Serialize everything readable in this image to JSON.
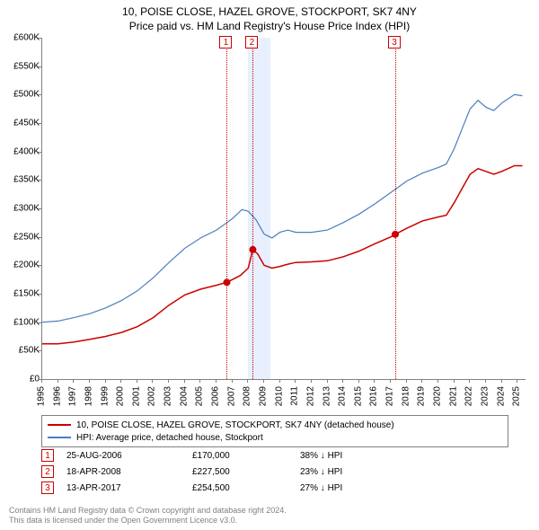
{
  "title_line1": "10, POISE CLOSE, HAZEL GROVE, STOCKPORT, SK7 4NY",
  "title_line2": "Price paid vs. HM Land Registry's House Price Index (HPI)",
  "chart": {
    "type": "line",
    "x_min": 1995,
    "x_max": 2025.5,
    "y_min": 0,
    "y_max": 600000,
    "ytick_step": 50000,
    "yticks": [
      "£0",
      "£50K",
      "£100K",
      "£150K",
      "£200K",
      "£250K",
      "£300K",
      "£350K",
      "£400K",
      "£450K",
      "£500K",
      "£550K",
      "£600K"
    ],
    "xticks": [
      1995,
      1996,
      1997,
      1998,
      1999,
      2000,
      2001,
      2002,
      2003,
      2004,
      2005,
      2006,
      2007,
      2008,
      2009,
      2010,
      2011,
      2012,
      2013,
      2014,
      2015,
      2016,
      2017,
      2018,
      2019,
      2020,
      2021,
      2022,
      2023,
      2024,
      2025
    ],
    "background_color": "#ffffff",
    "axis_color": "#808080",
    "recession_band": {
      "start": 2008.0,
      "end": 2009.4,
      "color": "#e8efff"
    },
    "series": {
      "property": {
        "color": "#cc0000",
        "width": 1.5,
        "points": [
          [
            1995,
            62000
          ],
          [
            1996,
            62000
          ],
          [
            1997,
            65000
          ],
          [
            1998,
            70000
          ],
          [
            1999,
            75000
          ],
          [
            2000,
            82000
          ],
          [
            2001,
            92000
          ],
          [
            2002,
            108000
          ],
          [
            2003,
            130000
          ],
          [
            2004,
            148000
          ],
          [
            2005,
            158000
          ],
          [
            2006,
            165000
          ],
          [
            2006.65,
            170000
          ],
          [
            2007,
            175000
          ],
          [
            2007.5,
            182000
          ],
          [
            2008,
            195000
          ],
          [
            2008.29,
            227500
          ],
          [
            2008.6,
            220000
          ],
          [
            2009,
            200000
          ],
          [
            2009.5,
            195000
          ],
          [
            2010,
            198000
          ],
          [
            2010.5,
            202000
          ],
          [
            2011,
            205000
          ],
          [
            2012,
            206000
          ],
          [
            2013,
            208000
          ],
          [
            2014,
            215000
          ],
          [
            2015,
            225000
          ],
          [
            2016,
            238000
          ],
          [
            2017,
            250000
          ],
          [
            2017.28,
            254500
          ],
          [
            2018,
            265000
          ],
          [
            2019,
            278000
          ],
          [
            2020,
            285000
          ],
          [
            2020.5,
            288000
          ],
          [
            2021,
            310000
          ],
          [
            2021.5,
            335000
          ],
          [
            2022,
            360000
          ],
          [
            2022.5,
            370000
          ],
          [
            2023,
            365000
          ],
          [
            2023.5,
            360000
          ],
          [
            2024,
            365000
          ],
          [
            2024.8,
            375000
          ],
          [
            2025.3,
            375000
          ]
        ]
      },
      "hpi": {
        "color": "#4a7ebb",
        "width": 1.2,
        "points": [
          [
            1995,
            100000
          ],
          [
            1996,
            102000
          ],
          [
            1997,
            108000
          ],
          [
            1998,
            115000
          ],
          [
            1999,
            125000
          ],
          [
            2000,
            138000
          ],
          [
            2001,
            155000
          ],
          [
            2002,
            178000
          ],
          [
            2003,
            205000
          ],
          [
            2004,
            230000
          ],
          [
            2005,
            248000
          ],
          [
            2006,
            262000
          ],
          [
            2007,
            282000
          ],
          [
            2007.6,
            298000
          ],
          [
            2008,
            295000
          ],
          [
            2008.5,
            280000
          ],
          [
            2009,
            255000
          ],
          [
            2009.5,
            248000
          ],
          [
            2010,
            258000
          ],
          [
            2010.5,
            262000
          ],
          [
            2011,
            258000
          ],
          [
            2012,
            258000
          ],
          [
            2013,
            262000
          ],
          [
            2014,
            275000
          ],
          [
            2015,
            290000
          ],
          [
            2016,
            308000
          ],
          [
            2017,
            328000
          ],
          [
            2018,
            348000
          ],
          [
            2019,
            362000
          ],
          [
            2020,
            372000
          ],
          [
            2020.5,
            378000
          ],
          [
            2021,
            405000
          ],
          [
            2021.5,
            440000
          ],
          [
            2022,
            475000
          ],
          [
            2022.5,
            490000
          ],
          [
            2023,
            478000
          ],
          [
            2023.5,
            472000
          ],
          [
            2024,
            485000
          ],
          [
            2024.8,
            500000
          ],
          [
            2025.3,
            498000
          ]
        ]
      }
    },
    "sale_markers": [
      {
        "n": "1",
        "x": 2006.65,
        "y": 170000,
        "color": "#cc0000"
      },
      {
        "n": "2",
        "x": 2008.29,
        "y": 227500,
        "color": "#cc0000"
      },
      {
        "n": "3",
        "x": 2017.28,
        "y": 254500,
        "color": "#cc0000"
      }
    ]
  },
  "legend": {
    "items": [
      {
        "color": "#cc0000",
        "label": "10, POISE CLOSE, HAZEL GROVE, STOCKPORT, SK7 4NY (detached house)"
      },
      {
        "color": "#4a7ebb",
        "label": "HPI: Average price, detached house, Stockport"
      }
    ]
  },
  "sales": [
    {
      "n": "1",
      "date": "25-AUG-2006",
      "price": "£170,000",
      "delta": "38% ↓ HPI",
      "color": "#cc0000"
    },
    {
      "n": "2",
      "date": "18-APR-2008",
      "price": "£227,500",
      "delta": "23% ↓ HPI",
      "color": "#cc0000"
    },
    {
      "n": "3",
      "date": "13-APR-2017",
      "price": "£254,500",
      "delta": "27% ↓ HPI",
      "color": "#cc0000"
    }
  ],
  "footer": {
    "line1": "Contains HM Land Registry data © Crown copyright and database right 2024.",
    "line2": "This data is licensed under the Open Government Licence v3.0."
  }
}
